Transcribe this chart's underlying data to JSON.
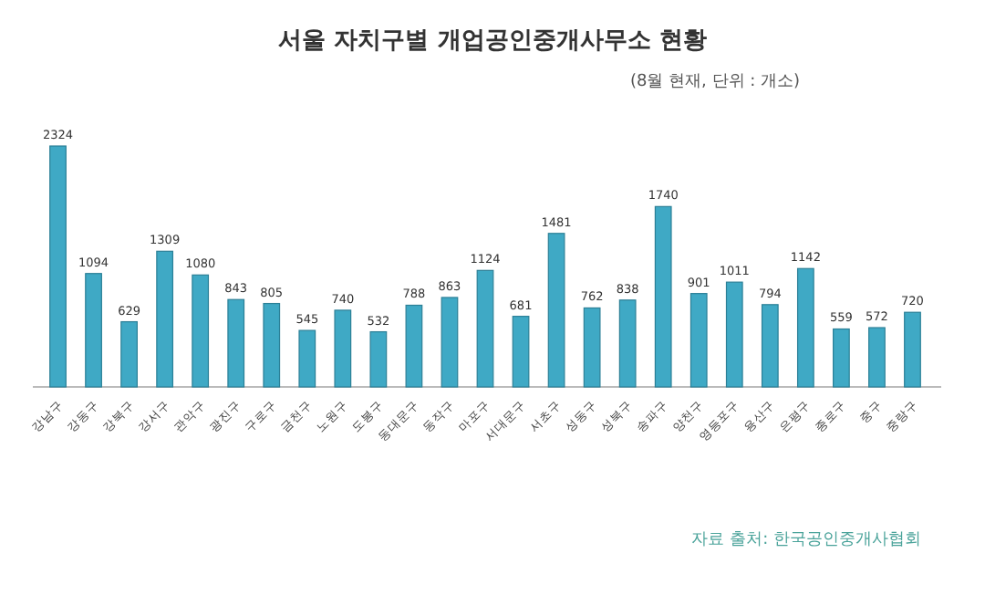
{
  "chart_data": {
    "type": "bar",
    "title": "서울 자치구별 개업공인중개사무소 현황",
    "subtitle": "(8월 현재, 단위 : 개소)",
    "categories": [
      "강남구",
      "강동구",
      "강북구",
      "강서구",
      "관악구",
      "광진구",
      "구로구",
      "금천구",
      "노원구",
      "도봉구",
      "동대문구",
      "동작구",
      "마포구",
      "서대문구",
      "서초구",
      "성동구",
      "성북구",
      "송파구",
      "양천구",
      "영등포구",
      "용산구",
      "은평구",
      "종로구",
      "중구",
      "중랑구"
    ],
    "values": [
      2324,
      1094,
      629,
      1309,
      1080,
      843,
      805,
      545,
      740,
      532,
      788,
      863,
      1124,
      681,
      1481,
      762,
      838,
      1740,
      901,
      1011,
      794,
      1142,
      559,
      572,
      720
    ],
    "color": "#3fa9c5",
    "data_labels": true,
    "annotations": [
      "자료 출처: 한국공인중개사협회"
    ]
  }
}
